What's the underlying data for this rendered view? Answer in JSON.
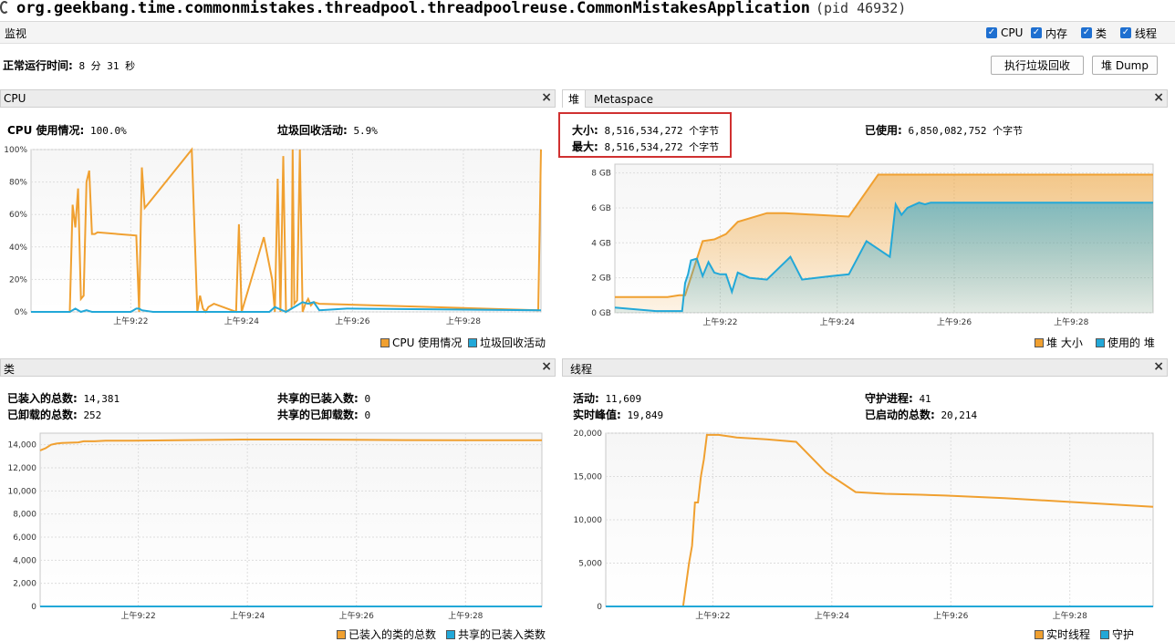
{
  "window": {
    "title": "org.geekbang.time.commonmistakes.threadpool.threadpoolreuse.CommonMistakesApplication",
    "pid": "(pid 46932)"
  },
  "monitor": {
    "label": "监视",
    "checkboxes": [
      {
        "label": "CPU",
        "checked": true
      },
      {
        "label": "内存",
        "checked": true
      },
      {
        "label": "类",
        "checked": true
      },
      {
        "label": "线程",
        "checked": true
      }
    ],
    "uptime_label": "正常运行时间:",
    "uptime_value": "8 分 31 秒",
    "gc_button": "执行垃圾回收",
    "heap_dump_button": "堆 Dump"
  },
  "cpu": {
    "title": "CPU",
    "usage_label": "CPU 使用情况:",
    "usage_value": "100.0%",
    "gc_label": "垃圾回收活动:",
    "gc_value": "5.9%",
    "legend": [
      "CPU 使用情况",
      "垃圾回收活动"
    ]
  },
  "heap": {
    "tabs": [
      "堆",
      "Metaspace"
    ],
    "size_label": "大小:",
    "size_value": "8,516,534,272 个字节",
    "max_label": "最大:",
    "max_value": "8,516,534,272 个字节",
    "used_label": "已使用:",
    "used_value": "6,850,082,752 个字节",
    "legend": [
      "堆 大小",
      "使用的 堆"
    ]
  },
  "classes": {
    "title": "类",
    "loaded_label": "已装入的总数:",
    "loaded_value": "14,381",
    "unloaded_label": "已卸载的总数:",
    "unloaded_value": "252",
    "shared_loaded_label": "共享的已装入数:",
    "shared_loaded_value": "0",
    "shared_unloaded_label": "共享的已卸载数:",
    "shared_unloaded_value": "0",
    "legend": [
      "已装入的类的总数",
      "共享的已装入类数"
    ]
  },
  "threads": {
    "title": "线程",
    "live_label": "活动:",
    "live_value": "11,609",
    "peak_label": "实时峰值:",
    "peak_value": "19,849",
    "daemon_label": "守护进程:",
    "daemon_value": "41",
    "started_label": "已启动的总数:",
    "started_value": "20,214",
    "legend": [
      "实时线程",
      "守护"
    ]
  },
  "colors": {
    "orange": "#f0a030",
    "blue": "#22a8d8",
    "highlight": "#d03030"
  },
  "chart_data": [
    {
      "type": "line",
      "title": "CPU",
      "x_ticks": [
        "上午9:22",
        "上午9:24",
        "上午9:26",
        "上午9:28"
      ],
      "y_ticks": [
        "0%",
        "20%",
        "40%",
        "60%",
        "80%",
        "100%"
      ],
      "ylim": [
        0,
        100
      ],
      "x_range": [
        9.3,
        18.5
      ],
      "series": [
        {
          "name": "CPU 使用情况",
          "color": "#f0a030",
          "x": [
            9.3,
            10.0,
            10.05,
            10.1,
            10.15,
            10.2,
            10.25,
            10.3,
            10.35,
            10.4,
            10.45,
            10.5,
            11.2,
            11.25,
            11.3,
            11.35,
            11.4,
            12.2,
            12.3,
            12.35,
            12.4,
            12.45,
            12.5,
            12.6,
            13.0,
            13.05,
            13.1,
            13.5,
            13.65,
            13.7,
            13.75,
            13.8,
            13.85,
            13.9,
            14.0,
            14.02,
            14.05,
            14.1,
            14.15,
            14.2,
            14.25,
            14.3,
            14.35,
            14.4,
            14.5,
            18.45,
            18.5
          ],
          "y": [
            0,
            0,
            66,
            52,
            76,
            8,
            10,
            80,
            87,
            48,
            48,
            49,
            47,
            0,
            89,
            64,
            66,
            100,
            0,
            10,
            2,
            0,
            3,
            5,
            0,
            54,
            0,
            46,
            20,
            0,
            82,
            0,
            96,
            0,
            2,
            100,
            5,
            7,
            100,
            0,
            5,
            8,
            4,
            6,
            5,
            1,
            100
          ]
        },
        {
          "name": "垃圾回收活动",
          "color": "#22a8d8",
          "x": [
            9.3,
            10.0,
            10.1,
            10.2,
            10.3,
            10.4,
            10.5,
            11.1,
            11.2,
            11.25,
            11.3,
            11.5,
            12.0,
            13.6,
            13.7,
            13.9,
            14.1,
            14.2,
            14.3,
            14.4,
            14.5,
            15.0,
            18.5
          ],
          "y": [
            0,
            0,
            2,
            0,
            1,
            0,
            0,
            0,
            2,
            2,
            1,
            0,
            0,
            0,
            3,
            0,
            4,
            6,
            5,
            6,
            1,
            2,
            1
          ]
        }
      ]
    },
    {
      "type": "area",
      "title": "堆",
      "x_ticks": [
        "上午9:22",
        "上午9:24",
        "上午9:26",
        "上午9:28"
      ],
      "y_ticks": [
        "0 GB",
        "2 GB",
        "4 GB",
        "6 GB",
        "8 GB"
      ],
      "ylim": [
        0,
        8.5
      ],
      "x_range": [
        9.3,
        18.5
      ],
      "series": [
        {
          "name": "堆 大小",
          "color": "#f0a030",
          "x": [
            9.3,
            10.0,
            10.05,
            10.2,
            10.4,
            10.5,
            10.8,
            11.0,
            11.2,
            11.4,
            11.9,
            12.2,
            13.3,
            13.8,
            13.9,
            14.1,
            14.3,
            18.5
          ],
          "y": [
            0.9,
            0.9,
            0.9,
            0.9,
            1.0,
            1.0,
            4.1,
            4.2,
            4.5,
            5.2,
            5.7,
            5.7,
            5.5,
            7.9,
            7.9,
            7.9,
            7.9,
            7.9
          ]
        },
        {
          "name": "使用的 堆",
          "color": "#22a8d8",
          "x": [
            9.3,
            10.0,
            10.05,
            10.3,
            10.45,
            10.5,
            10.55,
            10.6,
            10.7,
            10.8,
            10.9,
            11.0,
            11.1,
            11.2,
            11.3,
            11.4,
            11.6,
            11.9,
            12.3,
            12.5,
            13.0,
            13.3,
            13.6,
            14.0,
            14.1,
            14.2,
            14.3,
            14.5,
            14.6,
            14.7,
            14.8,
            15.0,
            15.5,
            16.0,
            18.5
          ],
          "y": [
            0.3,
            0.1,
            0.1,
            0.1,
            0.1,
            1.7,
            2.2,
            3.0,
            3.1,
            2.1,
            2.9,
            2.3,
            2.2,
            2.2,
            1.2,
            2.3,
            2.0,
            1.9,
            3.2,
            1.9,
            2.1,
            2.2,
            4.1,
            3.2,
            6.2,
            5.6,
            6.0,
            6.3,
            6.2,
            6.3,
            6.3,
            6.3,
            6.3,
            6.3,
            6.3
          ]
        }
      ]
    },
    {
      "type": "line",
      "title": "类",
      "x_ticks": [
        "上午9:22",
        "上午9:24",
        "上午9:26",
        "上午9:28"
      ],
      "y_ticks": [
        "0",
        "2,000",
        "4,000",
        "6,000",
        "8,000",
        "10,000",
        "12,000",
        "14,000"
      ],
      "ylim": [
        0,
        15000
      ],
      "x_range": [
        9.3,
        18.5
      ],
      "series": [
        {
          "name": "已装入的类的总数",
          "color": "#f0a030",
          "x": [
            9.3,
            9.35,
            9.4,
            9.5,
            9.6,
            9.7,
            10.0,
            10.1,
            10.3,
            10.5,
            11.0,
            12.0,
            13.0,
            14.0,
            15.0,
            16.0,
            17.0,
            18.5
          ],
          "y": [
            13500,
            13600,
            13700,
            14000,
            14100,
            14150,
            14200,
            14300,
            14300,
            14350,
            14350,
            14400,
            14450,
            14450,
            14420,
            14400,
            14390,
            14381
          ]
        },
        {
          "name": "共享的已装入类数",
          "color": "#22a8d8",
          "x": [
            9.3,
            18.5
          ],
          "y": [
            0,
            0
          ]
        }
      ]
    },
    {
      "type": "line",
      "title": "线程",
      "x_ticks": [
        "上午9:22",
        "上午9:24",
        "上午9:26",
        "上午9:28"
      ],
      "y_ticks": [
        "0",
        "5,000",
        "10,000",
        "15,000",
        "20,000"
      ],
      "ylim": [
        0,
        20000
      ],
      "x_range": [
        9.3,
        18.5
      ],
      "series": [
        {
          "name": "实时线程",
          "color": "#f0a030",
          "x": [
            9.3,
            10.6,
            10.7,
            10.75,
            10.8,
            10.85,
            10.9,
            10.95,
            11.0,
            11.2,
            11.25,
            11.4,
            11.5,
            12.0,
            12.5,
            13.0,
            13.5,
            14.0,
            14.3,
            14.6,
            15.0,
            16.0,
            17.0,
            18.5
          ],
          "y": [
            0,
            0,
            5000,
            7000,
            12000,
            12000,
            15000,
            17000,
            19800,
            19800,
            19750,
            19600,
            19500,
            19300,
            19000,
            15500,
            13200,
            13000,
            12950,
            12900,
            12800,
            12500,
            12100,
            11500
          ]
        },
        {
          "name": "守护",
          "color": "#22a8d8",
          "x": [
            9.3,
            18.5
          ],
          "y": [
            0,
            0
          ]
        }
      ]
    }
  ]
}
